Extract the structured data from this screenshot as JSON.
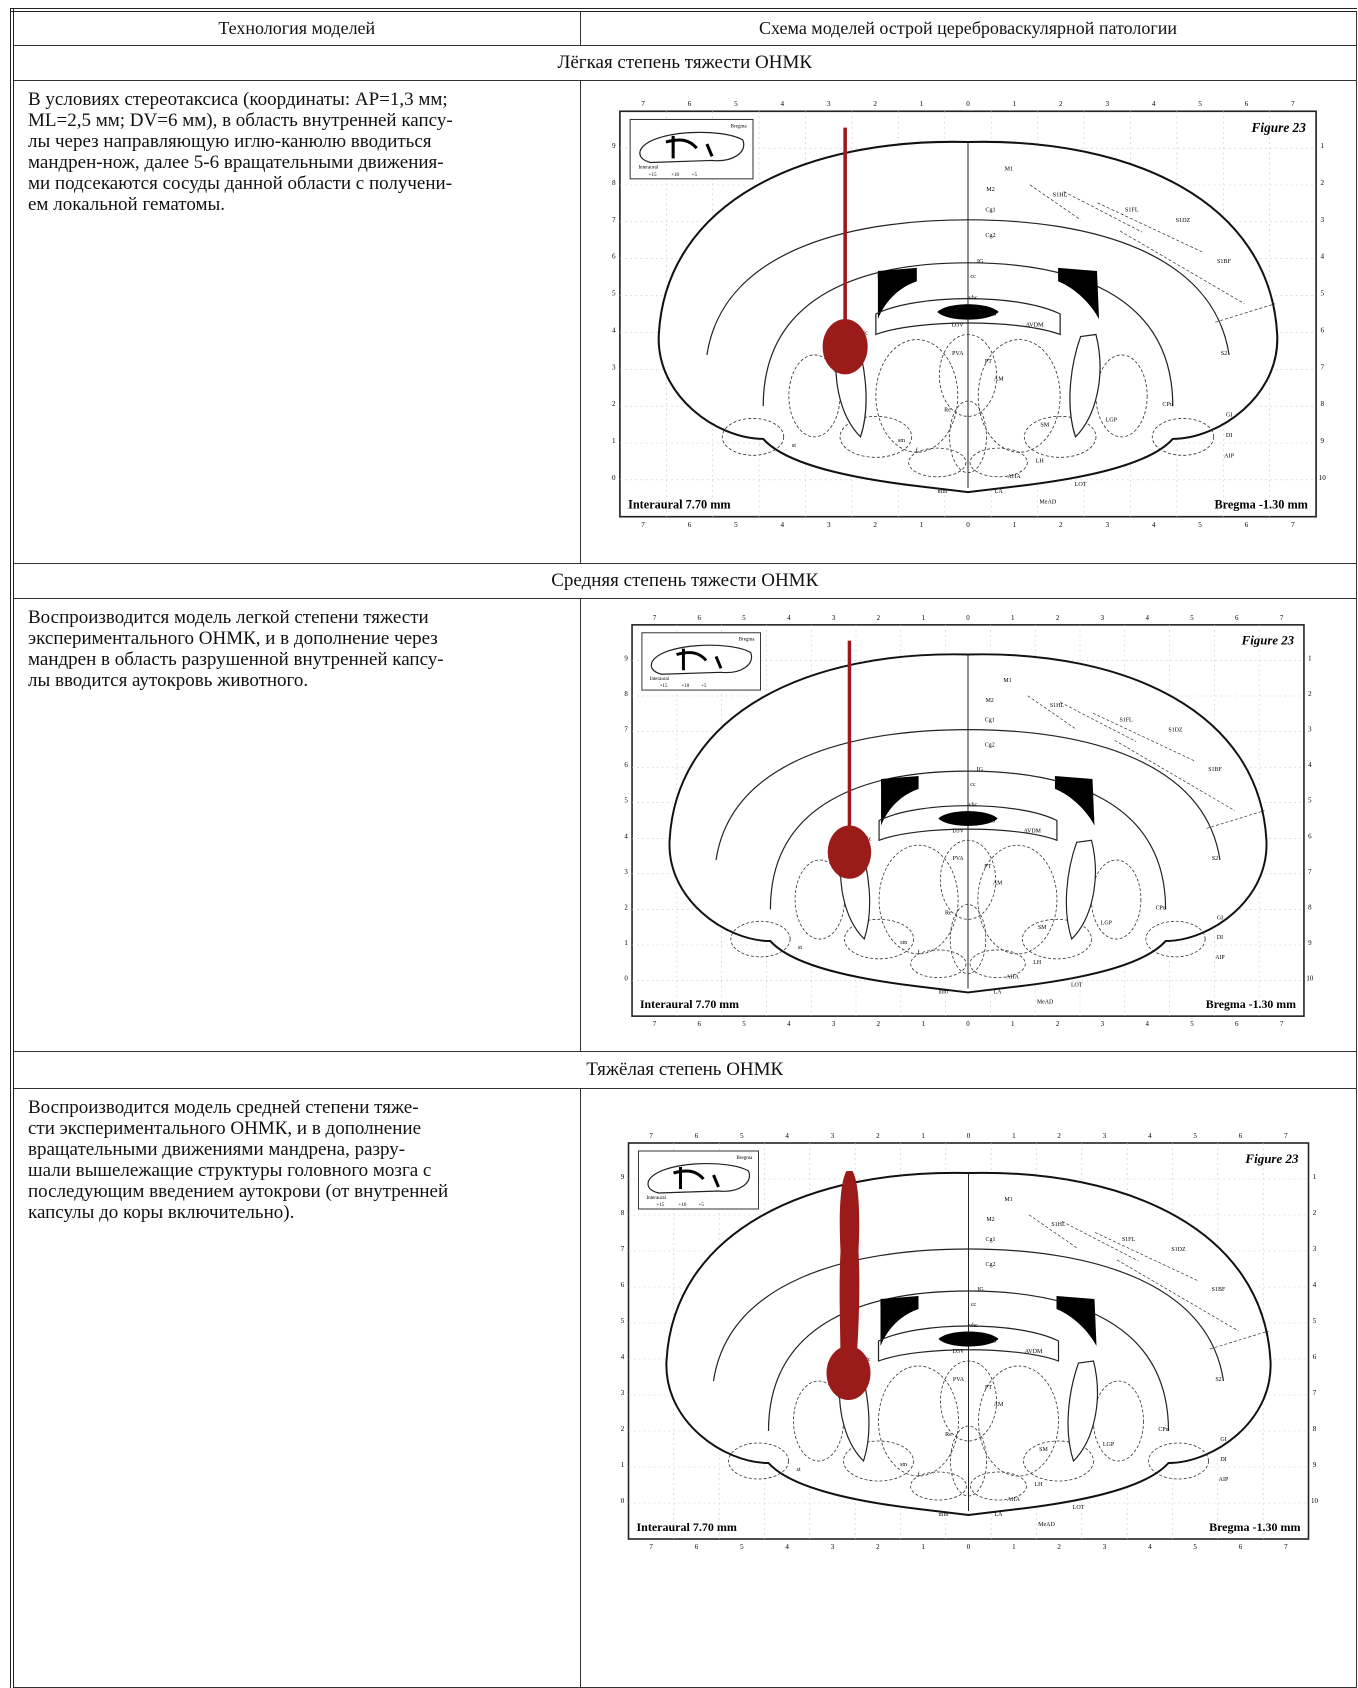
{
  "header": {
    "col1": "Технология моделей",
    "col2": "Схема моделей острой цереброваскулярной патологии"
  },
  "sections": [
    {
      "title": "Лёгкая степень тяжести ОНМК",
      "text": "В условиях стереотаксиса (координаты: AP=1,3 мм;\nML=2,5 мм; DV=6 мм), в область внутренней капсу-\nлы через направляющую иглю-канюлю вводиться\nмандрен-нож, далее 5-6 вращательными движения-\nми подсекаются сосуды данной области с получени-\nем локальной гематомы."
    },
    {
      "title": "Средняя степень тяжести ОНМК",
      "text": "Воспроизводится модель легкой степени тяжести\nэкспериментального ОНМК, и в дополнение через\nмандрен в область разрушенной внутренней капсу-\nлы вводится аутокровь животного."
    },
    {
      "title": "Тяжёлая степень ОНМК",
      "text": "Воспроизводится модель средней степени тяже-\nсти экспериментального ОНМК, и в дополнение\nвращательными движениями мандрена, разру-\nшали вышележащие структуры головного мозга с\nпоследующим введением аутокрови (от внутренней\nкапсулы до коры включительно)."
    }
  ],
  "figure": {
    "label": "Figure 23",
    "interaural": "Interaural 7.70 mm",
    "bregma": "Bregma -1.30 mm",
    "x_ticks": [
      7,
      6,
      5,
      4,
      3,
      2,
      1,
      0,
      1,
      2,
      3,
      4,
      5,
      6,
      7
    ],
    "left_ticks": [
      9,
      8,
      7,
      6,
      5,
      4,
      3,
      2,
      1,
      0
    ],
    "right_ticks": [
      1,
      2,
      3,
      4,
      5,
      6,
      7,
      8,
      9,
      10
    ],
    "inset_labels": [
      "Bregma",
      "Interaural",
      "+15",
      "+10",
      "+5"
    ],
    "regions": [
      "M1",
      "M2",
      "S1HL",
      "S1FL",
      "S1DZ",
      "S1BF",
      "S2",
      "Cg1",
      "Cg2",
      "IG",
      "cc",
      "LV",
      "vhc",
      "SFO",
      "AVDM",
      "D3V",
      "PVA",
      "PT",
      "AM",
      "CPu",
      "LGP",
      "GI",
      "DI",
      "AIP",
      "SM",
      "LH",
      "LA",
      "AHA",
      "Re",
      "LOT",
      "MeAD",
      "sm",
      "f",
      "mfb",
      "st",
      "ic"
    ]
  }
}
